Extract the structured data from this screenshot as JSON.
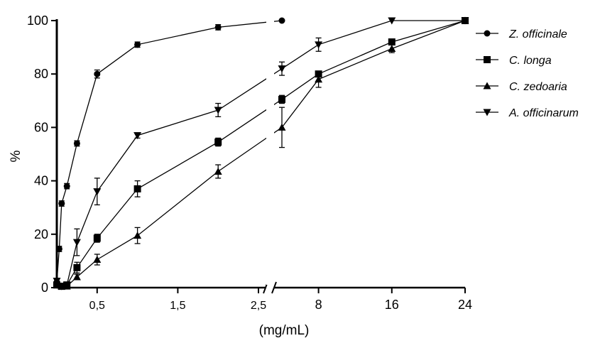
{
  "chart_data": {
    "type": "line",
    "title": "",
    "xlabel": "(mg/mL)",
    "ylabel": "%",
    "ylim": [
      0,
      100
    ],
    "yticks": [
      0,
      20,
      40,
      60,
      80,
      100
    ],
    "x_segments": [
      {
        "range": [
          0,
          2.6
        ],
        "ticks": [
          0.5,
          1.5,
          2.5
        ],
        "tick_labels": [
          "0,5",
          "1,5",
          "2,5"
        ]
      },
      {
        "range": [
          4,
          24
        ],
        "ticks": [
          8,
          16,
          24
        ],
        "tick_labels": [
          "8",
          "16",
          "24"
        ]
      }
    ],
    "legend_position": "right",
    "series": [
      {
        "name": "Z. officinale",
        "marker": "circle",
        "points": [
          {
            "x": 0.0,
            "y": 2,
            "err": 1
          },
          {
            "x": 0.03,
            "y": 14.5,
            "err": 1
          },
          {
            "x": 0.06,
            "y": 31.5,
            "err": 1
          },
          {
            "x": 0.125,
            "y": 38,
            "err": 1
          },
          {
            "x": 0.25,
            "y": 54,
            "err": 1
          },
          {
            "x": 0.5,
            "y": 80,
            "err": 1.5
          },
          {
            "x": 1.0,
            "y": 91,
            "err": 1
          },
          {
            "x": 2.0,
            "y": 97.5,
            "err": 1
          },
          {
            "x": 4.0,
            "y": 100,
            "err": 0
          }
        ]
      },
      {
        "name": "C. longa",
        "marker": "square",
        "points": [
          {
            "x": 0.0,
            "y": 1,
            "err": 0.5
          },
          {
            "x": 0.06,
            "y": 0.5,
            "err": 0.5
          },
          {
            "x": 0.125,
            "y": 1,
            "err": 0.5
          },
          {
            "x": 0.25,
            "y": 7.5,
            "err": 2
          },
          {
            "x": 0.5,
            "y": 18.5,
            "err": 1.5
          },
          {
            "x": 1.0,
            "y": 37,
            "err": 3
          },
          {
            "x": 2.0,
            "y": 54.5,
            "err": 1.5
          },
          {
            "x": 4.0,
            "y": 70.5,
            "err": 1.5
          },
          {
            "x": 8.0,
            "y": 80,
            "err": 1
          },
          {
            "x": 16.0,
            "y": 92,
            "err": 1
          },
          {
            "x": 24.0,
            "y": 100,
            "err": 0
          }
        ]
      },
      {
        "name": "C. zedoaria",
        "marker": "triangle-up",
        "points": [
          {
            "x": 0.0,
            "y": 1,
            "err": 0.5
          },
          {
            "x": 0.06,
            "y": 0.5,
            "err": 0.5
          },
          {
            "x": 0.125,
            "y": 0.5,
            "err": 0.5
          },
          {
            "x": 0.25,
            "y": 4,
            "err": 1
          },
          {
            "x": 0.5,
            "y": 10.5,
            "err": 2
          },
          {
            "x": 1.0,
            "y": 19.5,
            "err": 3
          },
          {
            "x": 2.0,
            "y": 43.5,
            "err": 2.5
          },
          {
            "x": 4.0,
            "y": 60,
            "err": 7.5
          },
          {
            "x": 8.0,
            "y": 78,
            "err": 3
          },
          {
            "x": 16.0,
            "y": 89.5,
            "err": 1.5
          },
          {
            "x": 24.0,
            "y": 100,
            "err": 0
          }
        ]
      },
      {
        "name": "A. officinarum",
        "marker": "triangle-down",
        "points": [
          {
            "x": 0.0,
            "y": 2.5,
            "err": 1
          },
          {
            "x": 0.06,
            "y": 0.5,
            "err": 0.5
          },
          {
            "x": 0.125,
            "y": 1,
            "err": 1
          },
          {
            "x": 0.25,
            "y": 17,
            "err": 5
          },
          {
            "x": 0.5,
            "y": 36,
            "err": 5
          },
          {
            "x": 1.0,
            "y": 57,
            "err": 1
          },
          {
            "x": 2.0,
            "y": 66.5,
            "err": 2.5
          },
          {
            "x": 4.0,
            "y": 82,
            "err": 2.5
          },
          {
            "x": 8.0,
            "y": 91,
            "err": 2.5
          },
          {
            "x": 16.0,
            "y": 100,
            "err": 0
          },
          {
            "x": 24.0,
            "y": 100,
            "err": 0
          }
        ]
      }
    ]
  }
}
